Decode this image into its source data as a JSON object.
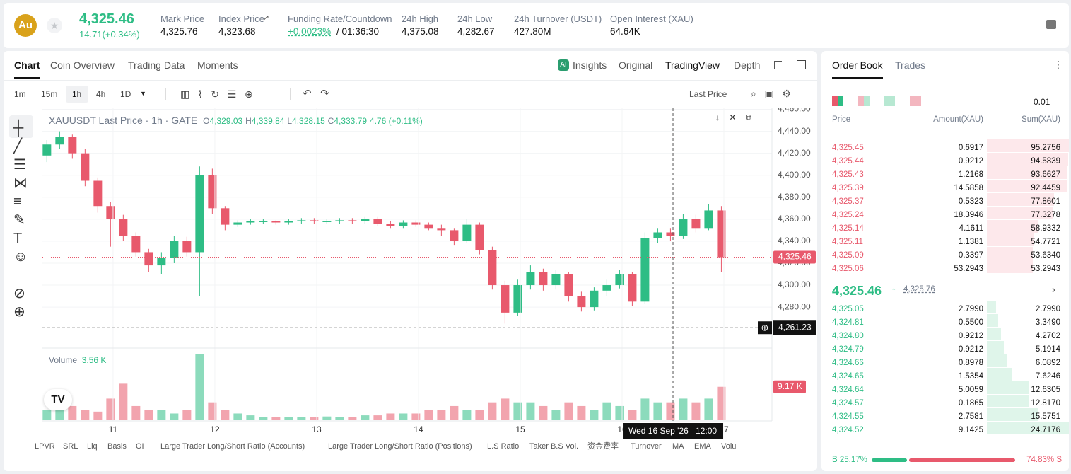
{
  "header": {
    "symbol": "Au",
    "price": "4,325.46",
    "change": "14.71(+0.34%)",
    "stats": [
      {
        "label": "Mark Price",
        "value": "4,325.76"
      },
      {
        "label": "Index Price",
        "value": "4,323.68"
      },
      {
        "label": "Funding Rate/Countdown",
        "value": "+0.0023%",
        "value2": "/ 01:36:30"
      },
      {
        "label": "24h High",
        "value": "4,375.08"
      },
      {
        "label": "24h Low",
        "value": "4,282.67"
      },
      {
        "label": "24h Turnover (USDT)",
        "value": "427.80M"
      },
      {
        "label": "Open Interest (XAU)",
        "value": "64.64K"
      }
    ]
  },
  "tabs": {
    "left": [
      "Chart",
      "Coin Overview",
      "Trading Data",
      "Moments"
    ],
    "right": [
      "Insights",
      "Original",
      "TradingView",
      "Depth"
    ]
  },
  "toolbar": {
    "intervals": [
      "1m",
      "15m",
      "1h",
      "4h",
      "1D"
    ],
    "price_type": "Last Price"
  },
  "legend": {
    "title": "XAUUSDT Last Price · 1h · GATE",
    "o": "4,329.03",
    "h": "4,339.84",
    "l": "4,328.15",
    "c": "4,333.79",
    "change": "4.76 (+0.11%)",
    "volume_label": "Volume",
    "volume_value": "3.56 K"
  },
  "chart_data": {
    "type": "candlestick",
    "up_color": "#2ebd85",
    "down_color": "#e8596c",
    "grid": true,
    "x": [
      10.35,
      10.475,
      10.6,
      10.725,
      10.85,
      10.975,
      11.1,
      11.225,
      11.35,
      11.475,
      11.6,
      11.725,
      11.85,
      11.975,
      12.1,
      12.225,
      12.35,
      12.475,
      12.6,
      12.725,
      12.85,
      12.975,
      13.1,
      13.225,
      13.35,
      13.475,
      13.6,
      13.725,
      13.85,
      13.975,
      14.1,
      14.225,
      14.35,
      14.475,
      14.6,
      14.725,
      14.85,
      14.975,
      15.1,
      15.225,
      15.35,
      15.475,
      15.6,
      15.725,
      15.85,
      15.975,
      16.1,
      16.225,
      16.35,
      16.475,
      16.6,
      16.725,
      16.85,
      16.975
    ],
    "xlim": [
      10.306,
      17.472
    ],
    "xticks": [
      11,
      12,
      13,
      14,
      15,
      16,
      17
    ],
    "ylim": [
      4244,
      4461
    ],
    "yticks": [
      {
        "value": 4280,
        "label": "4,280.00"
      },
      {
        "value": 4300,
        "label": "4,300.00"
      },
      {
        "value": 4320,
        "label": "4,320.00"
      },
      {
        "value": 4340,
        "label": "4,340.00"
      },
      {
        "value": 4360,
        "label": "4,360.00"
      },
      {
        "value": 4380,
        "label": "4,380.00"
      },
      {
        "value": 4400,
        "label": "4,400.00"
      },
      {
        "value": 4420,
        "label": "4,420.00"
      },
      {
        "value": 4440,
        "label": "4,440.00"
      },
      {
        "value": 4460,
        "label": "4,460.00"
      }
    ],
    "series": [
      {
        "name": "XAUUSDT",
        "values": [
          [
            4418,
            4432,
            4412,
            4428
          ],
          [
            4428,
            4440,
            4424,
            4435
          ],
          [
            4435,
            4437,
            4415,
            4420
          ],
          [
            4420,
            4424,
            4390,
            4395
          ],
          [
            4395,
            4398,
            4366,
            4372
          ],
          [
            4372,
            4376,
            4335,
            4360
          ],
          [
            4360,
            4364,
            4340,
            4345
          ],
          [
            4345,
            4348,
            4326,
            4330
          ],
          [
            4330,
            4333,
            4312,
            4318
          ],
          [
            4318,
            4330,
            4310,
            4325
          ],
          [
            4325,
            4345,
            4320,
            4340
          ],
          [
            4340,
            4344,
            4326,
            4330
          ],
          [
            4330,
            4408,
            4290,
            4400
          ],
          [
            4400,
            4406,
            4365,
            4370
          ],
          [
            4370,
            4372,
            4350,
            4355
          ],
          [
            4355,
            4359,
            4353,
            4357
          ],
          [
            4357,
            4360,
            4355,
            4358
          ],
          [
            4358,
            4360,
            4356,
            4358
          ],
          [
            4358,
            4359,
            4355,
            4357
          ],
          [
            4357,
            4360,
            4355,
            4358
          ],
          [
            4358,
            4361,
            4356,
            4359
          ],
          [
            4359,
            4361,
            4356,
            4358
          ],
          [
            4358,
            4360,
            4356,
            4358
          ],
          [
            4358,
            4361,
            4356,
            4359
          ],
          [
            4359,
            4361,
            4356,
            4358
          ],
          [
            4358,
            4362,
            4356,
            4360
          ],
          [
            4360,
            4362,
            4354,
            4356
          ],
          [
            4356,
            4358,
            4352,
            4354
          ],
          [
            4354,
            4359,
            4352,
            4357
          ],
          [
            4357,
            4359,
            4353,
            4355
          ],
          [
            4355,
            4357,
            4350,
            4352
          ],
          [
            4352,
            4355,
            4345,
            4350
          ],
          [
            4350,
            4352,
            4336,
            4340
          ],
          [
            4340,
            4360,
            4338,
            4355
          ],
          [
            4355,
            4357,
            4328,
            4332
          ],
          [
            4332,
            4335,
            4296,
            4300
          ],
          [
            4300,
            4304,
            4265,
            4275
          ],
          [
            4275,
            4305,
            4272,
            4300
          ],
          [
            4300,
            4318,
            4296,
            4312
          ],
          [
            4312,
            4315,
            4295,
            4300
          ],
          [
            4300,
            4314,
            4296,
            4310
          ],
          [
            4310,
            4312,
            4285,
            4290
          ],
          [
            4290,
            4294,
            4276,
            4280
          ],
          [
            4280,
            4298,
            4277,
            4295
          ],
          [
            4295,
            4305,
            4290,
            4300
          ],
          [
            4300,
            4314,
            4297,
            4310
          ],
          [
            4310,
            4312,
            4281,
            4285
          ],
          [
            4285,
            4348,
            4283,
            4343
          ],
          [
            4343,
            4352,
            4338,
            4348
          ],
          [
            4348,
            4352,
            4340,
            4345
          ],
          [
            4345,
            4365,
            4342,
            4360
          ],
          [
            4360,
            4364,
            4348,
            4352
          ],
          [
            4352,
            4374,
            4350,
            4368
          ],
          [
            4368,
            4372,
            4312,
            4325.46
          ]
        ]
      }
    ],
    "volume": {
      "ylim": [
        0,
        19
      ],
      "values": [
        3,
        5,
        4,
        3,
        2.5,
        6,
        10,
        4,
        3,
        3,
        2,
        3,
        18,
        5,
        3,
        2,
        1.5,
        1,
        1,
        1,
        1,
        1,
        1.2,
        1,
        1,
        1.5,
        1.5,
        2,
        2,
        2,
        3,
        3,
        4,
        3,
        3,
        5,
        6,
        5,
        5,
        4,
        3,
        5,
        4,
        3,
        5,
        4,
        3,
        6,
        5,
        5,
        6,
        5,
        6,
        9.17
      ],
      "last": {
        "value": 9.17,
        "label": "9.17 K"
      }
    },
    "last_price": {
      "value": 4325.46,
      "label": "4,325.46"
    },
    "crosshair": {
      "y": {
        "value": 4261.23,
        "label": "4,261.23"
      },
      "x": {
        "value": 16.5,
        "label": "Wed 16 Sep '26",
        "time": "12:00"
      }
    }
  },
  "indicators": [
    "LPVR",
    "SRL",
    "Liq",
    "Basis",
    "OI",
    "Large Trader Long/Short Ratio (Accounts)",
    "Large Trader Long/Short Ratio (Positions)",
    "L.S Ratio",
    "Taker B.S Vol.",
    "资金费率",
    "Turnover",
    "MA",
    "EMA",
    "Volu"
  ],
  "order_book": {
    "tabs": [
      "Order Book",
      "Trades"
    ],
    "precision": "0.01",
    "columns": [
      "Price",
      "Amount(XAU)",
      "Sum(XAU)"
    ],
    "asks": [
      [
        "4,325.45",
        "0.6917",
        "95.2756"
      ],
      [
        "4,325.44",
        "0.9212",
        "94.5839"
      ],
      [
        "4,325.43",
        "1.2168",
        "93.6627"
      ],
      [
        "4,325.39",
        "14.5858",
        "92.4459"
      ],
      [
        "4,325.37",
        "0.5323",
        "77.8601"
      ],
      [
        "4,325.24",
        "18.3946",
        "77.3278"
      ],
      [
        "4,325.14",
        "4.1611",
        "58.9332"
      ],
      [
        "4,325.11",
        "1.1381",
        "54.7721"
      ],
      [
        "4,325.09",
        "0.3397",
        "53.6340"
      ],
      [
        "4,325.06",
        "53.2943",
        "53.2943"
      ]
    ],
    "mid_price": "4,325.46",
    "mark_price": "4,325.76",
    "bids": [
      [
        "4,325.05",
        "2.7990",
        "2.7990"
      ],
      [
        "4,324.81",
        "0.5500",
        "3.3490"
      ],
      [
        "4,324.80",
        "0.9212",
        "4.2702"
      ],
      [
        "4,324.79",
        "0.9212",
        "5.1914"
      ],
      [
        "4,324.66",
        "0.8978",
        "6.0892"
      ],
      [
        "4,324.65",
        "1.5354",
        "7.6246"
      ],
      [
        "4,324.64",
        "5.0059",
        "12.6305"
      ],
      [
        "4,324.57",
        "0.1865",
        "12.8170"
      ],
      [
        "4,324.55",
        "2.7581",
        "15.5751"
      ],
      [
        "4,324.52",
        "9.1425",
        "24.7176"
      ]
    ],
    "buy_label": "B",
    "buy_ratio": "25.17%",
    "sell_ratio": "74.83%",
    "sell_label": "S"
  }
}
